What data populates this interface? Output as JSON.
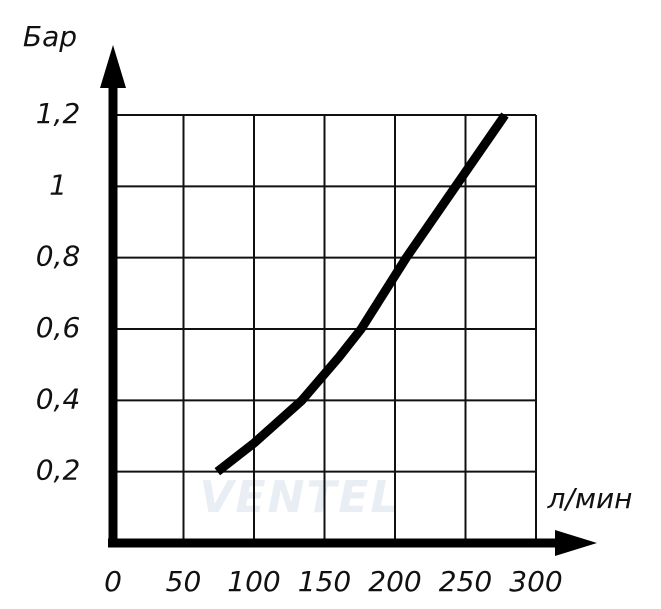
{
  "chart_data": {
    "type": "line",
    "y_label": "Бар",
    "x_label": "л/мин",
    "watermark": "VENTEL",
    "x": [
      74,
      100,
      134,
      160,
      176,
      208,
      243,
      278
    ],
    "series": [
      {
        "color": "#000000",
        "values": [
          0.2,
          0.28,
          0.4,
          0.52,
          0.6,
          0.8,
          1.0,
          1.2
        ]
      }
    ],
    "xlim": [
      0,
      300
    ],
    "ylim": [
      0,
      1.2
    ],
    "xticks": [
      0,
      50,
      100,
      150,
      200,
      250,
      300
    ],
    "yticks": [
      {
        "value": 0.2,
        "label": "0,2"
      },
      {
        "value": 0.4,
        "label": "0,4"
      },
      {
        "value": 0.6,
        "label": "0,6"
      },
      {
        "value": 0.8,
        "label": "0,8"
      },
      1,
      {
        "value": 1.2,
        "label": "1,2"
      }
    ],
    "grid": true
  }
}
